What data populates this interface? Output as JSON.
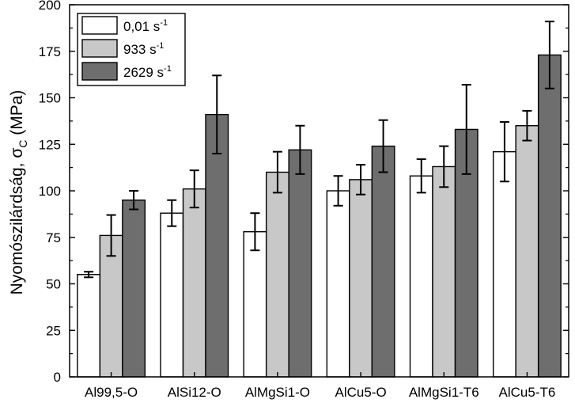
{
  "chart_data": {
    "type": "bar",
    "title": "",
    "xlabel": "",
    "ylabel_main": "Nyomószilárdság, σ",
    "ylabel_sub": "C",
    "ylabel_unit": "(MPa)",
    "ylim": [
      0,
      200
    ],
    "yticks": [
      "0",
      "25",
      "50",
      "75",
      "100",
      "125",
      "150",
      "175",
      "200"
    ],
    "categories": [
      "Al99,5-O",
      "AlSi12-O",
      "AlMgSi1-O",
      "AlCu5-O",
      "AlMgSi1-T6",
      "AlCu5-T6"
    ],
    "series": [
      {
        "name": "0,01 s",
        "sup": "-1",
        "color": "#ffffff",
        "values": [
          55,
          88,
          78,
          100,
          108,
          121
        ],
        "errors": [
          1.5,
          7,
          10,
          8,
          9,
          16
        ]
      },
      {
        "name": "933 s",
        "sup": "-1",
        "color": "#c8c8c8",
        "values": [
          76,
          101,
          110,
          106,
          113,
          135
        ],
        "errors": [
          11,
          10,
          11,
          8,
          11,
          8
        ]
      },
      {
        "name": "2629 s",
        "sup": "-1",
        "color": "#6e6e6e",
        "values": [
          95,
          141,
          122,
          124,
          133,
          173
        ],
        "errors": [
          5,
          21,
          13,
          14,
          24,
          18
        ]
      }
    ],
    "legend_position": "top-left",
    "grid": false
  }
}
